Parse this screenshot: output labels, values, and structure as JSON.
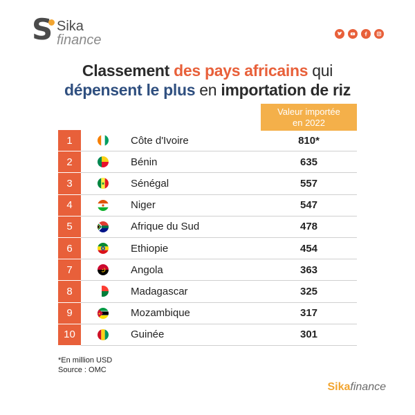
{
  "logo": {
    "s": "S",
    "sika": "Sika",
    "finance": "finance"
  },
  "social": [
    {
      "name": "twitter-icon"
    },
    {
      "name": "youtube-icon"
    },
    {
      "name": "facebook-icon"
    },
    {
      "name": "instagram-icon"
    }
  ],
  "title": {
    "line1_part1": "Classement ",
    "line1_highlight": "des pays africains",
    "line1_part2": " qui",
    "line2_highlight": "dépensent le plus",
    "line2_light": " en ",
    "line2_part2": "importation de riz"
  },
  "column_header": {
    "line1": "Valeur importée",
    "line2": "en 2022"
  },
  "rows": [
    {
      "rank": "1",
      "country": "Côte d'Ivoire",
      "value": "810*",
      "flag": "cote-divoire"
    },
    {
      "rank": "2",
      "country": "Bénin",
      "value": "635",
      "flag": "benin"
    },
    {
      "rank": "3",
      "country": "Sénégal",
      "value": "557",
      "flag": "senegal"
    },
    {
      "rank": "4",
      "country": "Niger",
      "value": "547",
      "flag": "niger"
    },
    {
      "rank": "5",
      "country": "Afrique du Sud",
      "value": "478",
      "flag": "south-africa"
    },
    {
      "rank": "6",
      "country": "Ethiopie",
      "value": "454",
      "flag": "ethiopia"
    },
    {
      "rank": "7",
      "country": "Angola",
      "value": "363",
      "flag": "angola"
    },
    {
      "rank": "8",
      "country": "Madagascar",
      "value": "325",
      "flag": "madagascar"
    },
    {
      "rank": "9",
      "country": "Mozambique",
      "value": "317",
      "flag": "mozambique"
    },
    {
      "rank": "10",
      "country": "Guinée",
      "value": "301",
      "flag": "guinea"
    }
  ],
  "notes": {
    "unit": "*En million USD",
    "source": "Source : OMC"
  },
  "brand": {
    "part1": "Sika",
    "part2": "finance"
  },
  "colors": {
    "orange": "#e8603a",
    "gold": "#f4b04a",
    "blue": "#2f4f7f",
    "text": "#222222"
  }
}
